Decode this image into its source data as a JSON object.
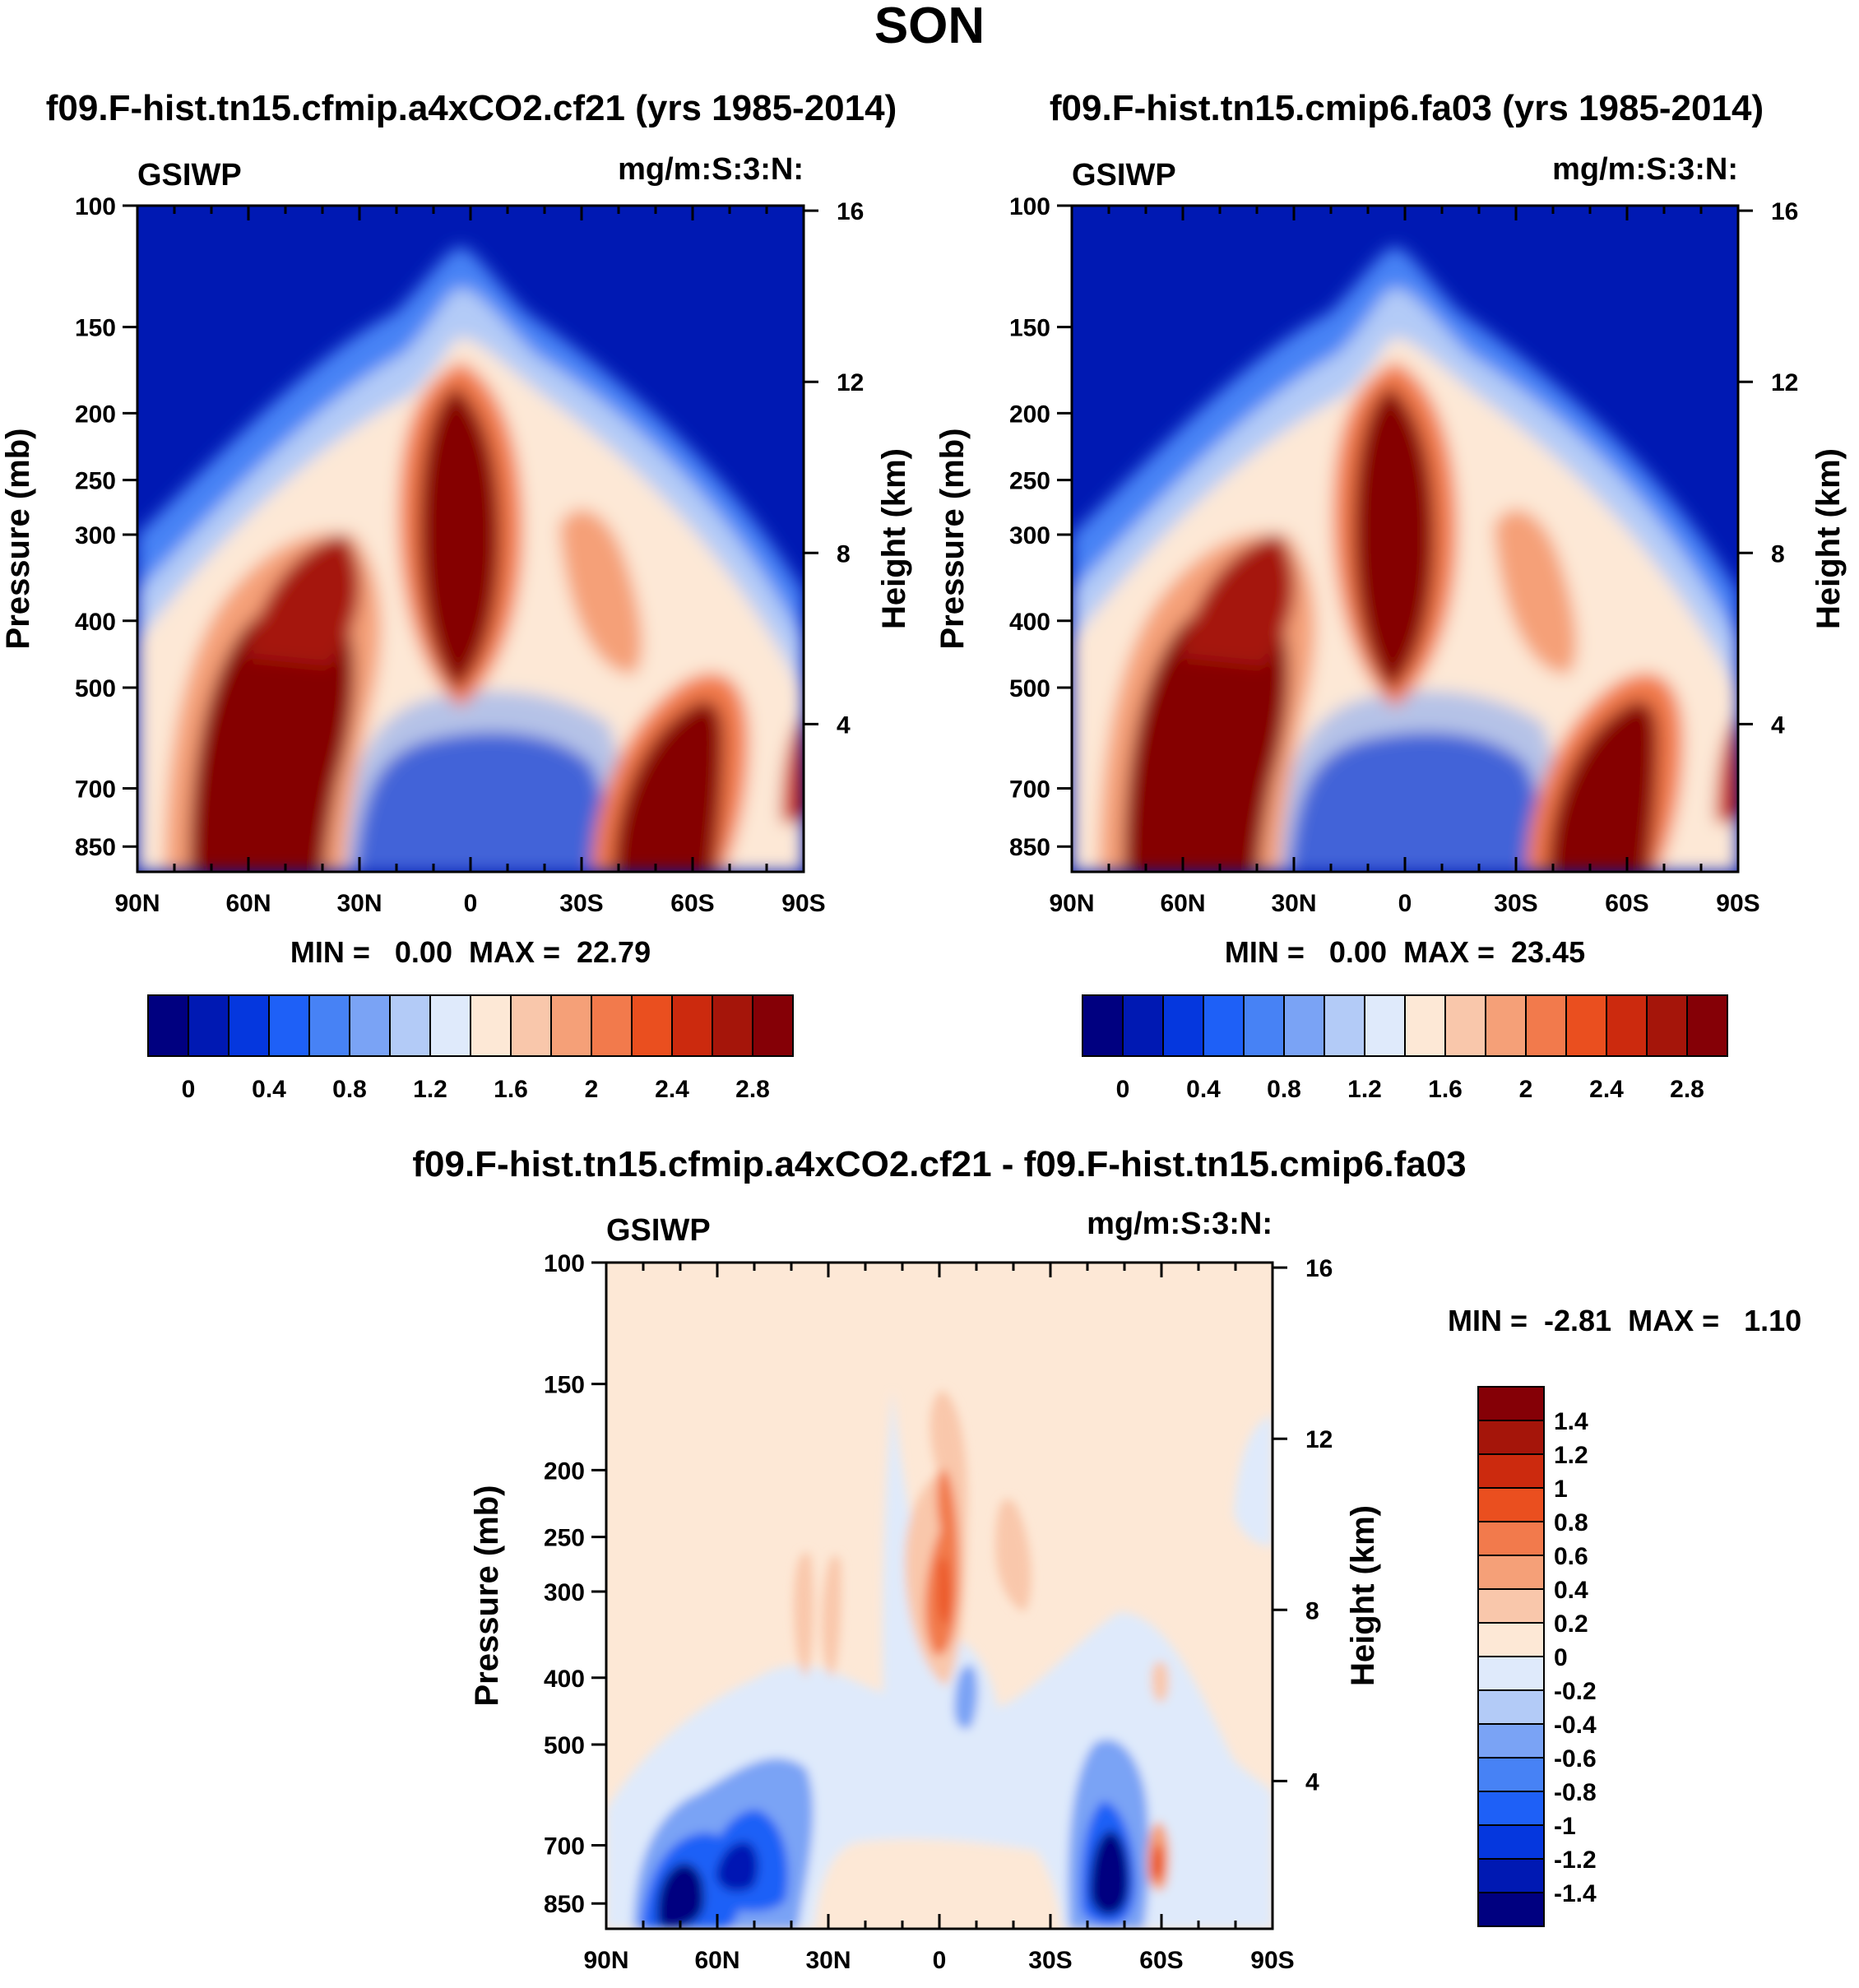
{
  "page_title": "SON",
  "colors": {
    "abs_levels": [
      "#000080",
      "#0019b3",
      "#0537de",
      "#1e60f7",
      "#4782f5",
      "#7aa3f5",
      "#b3cbf7",
      "#dfeafb",
      "#fde8d6",
      "#f9c7ab",
      "#f5a078",
      "#f27a4c",
      "#ea4f1f",
      "#cc2a0e",
      "#a5150a",
      "#850006"
    ],
    "diff_levels": [
      "#000080",
      "#0019b3",
      "#0537de",
      "#1e60f7",
      "#4782f5",
      "#7aa3f5",
      "#b3cbf7",
      "#dfeafb",
      "#fde8d6",
      "#f9c7ab",
      "#f5a078",
      "#f27a4c",
      "#ea4f1f",
      "#cc2a0e",
      "#a5150a",
      "#850006"
    ]
  },
  "chart_data": [
    {
      "type": "heatmap",
      "id": "panel1",
      "title": "f09.F-hist.tn15.cfmip.a4xCO2.cf21 (yrs 1985-2014)",
      "left_label": "GSIWP",
      "right_label": "mg/m:S:3:N:",
      "xlabel": "",
      "ylabel": "Pressure (mb)",
      "y2label": "Height (km)",
      "x_ticks": [
        "90N",
        "60N",
        "30N",
        "0",
        "30S",
        "60S",
        "90S"
      ],
      "x_range": [
        90,
        -90
      ],
      "y_ticks": [
        "100",
        "150",
        "200",
        "250",
        "300",
        "400",
        "500",
        "700",
        "850"
      ],
      "y_range_mb": [
        100,
        925
      ],
      "y2_ticks": [
        "16",
        "12",
        "8",
        "4"
      ],
      "min_max": "MIN =   0.00  MAX =  22.79",
      "colorbar_labels": [
        "0",
        "0.4",
        "0.8",
        "1.2",
        "1.6",
        "2",
        "2.4",
        "2.8"
      ],
      "colorbar_levels": [
        0,
        0.2,
        0.4,
        0.6,
        0.8,
        1.0,
        1.2,
        1.4,
        1.6,
        1.8,
        2.0,
        2.2,
        2.4,
        2.6,
        2.8
      ]
    },
    {
      "type": "heatmap",
      "id": "panel2",
      "title": "f09.F-hist.tn15.cmip6.fa03 (yrs 1985-2014)",
      "left_label": "GSIWP",
      "right_label": "mg/m:S:3:N:",
      "xlabel": "",
      "ylabel": "Pressure (mb)",
      "y2label": "Height (km)",
      "x_ticks": [
        "90N",
        "60N",
        "30N",
        "0",
        "30S",
        "60S",
        "90S"
      ],
      "x_range": [
        90,
        -90
      ],
      "y_ticks": [
        "100",
        "150",
        "200",
        "250",
        "300",
        "400",
        "500",
        "700",
        "850"
      ],
      "y_range_mb": [
        100,
        925
      ],
      "y2_ticks": [
        "16",
        "12",
        "8",
        "4"
      ],
      "min_max": "MIN =   0.00  MAX =  23.45",
      "colorbar_labels": [
        "0",
        "0.4",
        "0.8",
        "1.2",
        "1.6",
        "2",
        "2.4",
        "2.8"
      ],
      "colorbar_levels": [
        0,
        0.2,
        0.4,
        0.6,
        0.8,
        1.0,
        1.2,
        1.4,
        1.6,
        1.8,
        2.0,
        2.2,
        2.4,
        2.6,
        2.8
      ]
    },
    {
      "type": "heatmap",
      "id": "panel3",
      "title": "f09.F-hist.tn15.cfmip.a4xCO2.cf21 - f09.F-hist.tn15.cmip6.fa03",
      "left_label": "GSIWP",
      "right_label": "mg/m:S:3:N:",
      "xlabel": "",
      "ylabel": "Pressure (mb)",
      "y2label": "Height (km)",
      "x_ticks": [
        "90N",
        "60N",
        "30N",
        "0",
        "30S",
        "60S",
        "90S"
      ],
      "x_range": [
        90,
        -90
      ],
      "y_ticks": [
        "100",
        "150",
        "200",
        "250",
        "300",
        "400",
        "500",
        "700",
        "850"
      ],
      "y_range_mb": [
        100,
        925
      ],
      "y2_ticks": [
        "16",
        "12",
        "8",
        "4"
      ],
      "min_max": "MIN =  -2.81  MAX =   1.10",
      "colorbar_labels": [
        "1.4",
        "1.2",
        "1",
        "0.8",
        "0.6",
        "0.4",
        "0.2",
        "0",
        "-0.2",
        "-0.4",
        "-0.6",
        "-0.8",
        "-1",
        "-1.2",
        "-1.4"
      ],
      "colorbar_levels": [
        1.4,
        1.2,
        1.0,
        0.8,
        0.6,
        0.4,
        0.2,
        0,
        -0.2,
        -0.4,
        -0.6,
        -0.8,
        -1.0,
        -1.2,
        -1.4
      ]
    }
  ]
}
